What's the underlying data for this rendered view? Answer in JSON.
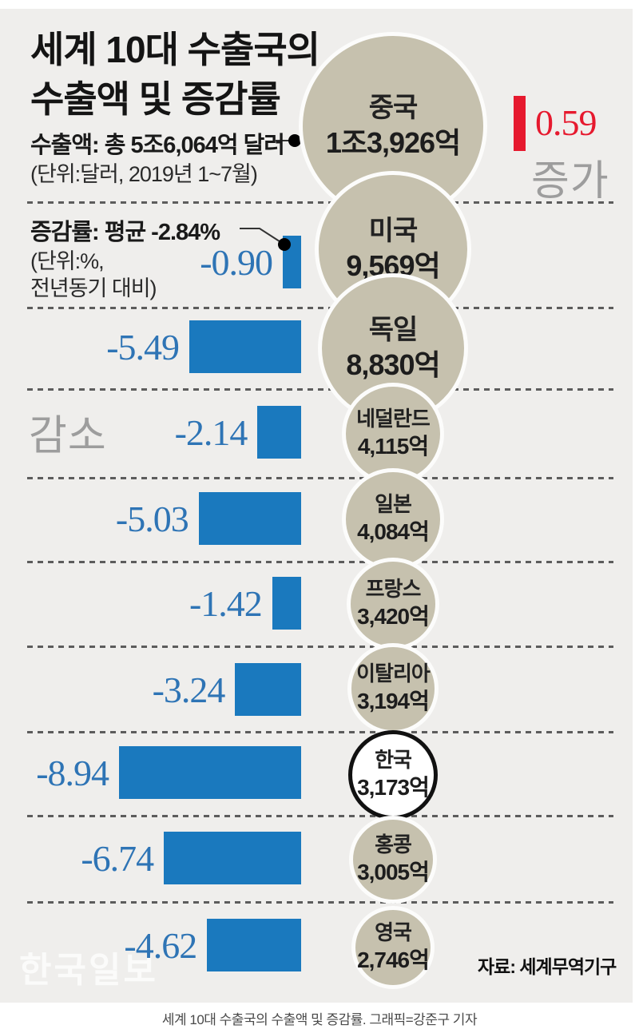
{
  "title": {
    "line1": "세계 10대 수출국의",
    "line2": "수출액 및 증감률"
  },
  "legend_export": {
    "label": "수출액:",
    "value": "총 5조6,064억 달러",
    "unit_note": "(단위:달러, 2019년 1~7월)"
  },
  "legend_change": {
    "label": "증감률:",
    "value": "평균 -2.84%",
    "unit_note_line1": "(단위:%,",
    "unit_note_line2": "전년동기 대비)"
  },
  "annotations": {
    "increase": "증가",
    "decrease": "감소"
  },
  "source": "자료: 세계무역기구",
  "watermark": "한국일보",
  "caption": "세계 10대 수출국의 수출액 및 증감률. 그래픽=강준구 기자",
  "colors": {
    "background": "#efeeec",
    "circle_beige": "#c6c1ae",
    "bar_blue": "#1a79be",
    "value_blue": "#2e74b5",
    "accent_red": "#e6192e",
    "gray_note": "#9d9d9d"
  },
  "chart_data": {
    "type": "bar",
    "title": "세계 10대 수출국의 수출액 및 증감률",
    "subtitle_total_export": "총 5조6,064억 달러",
    "average_change_pct": -2.84,
    "export_unit": "억 달러 (2019년 1~7월)",
    "change_unit": "% (전년동기 대비)",
    "legend_position": "top-left",
    "grid": "dashed-row-separators",
    "countries": [
      {
        "rank": 1,
        "name": "중국",
        "export_label": "1조3,926억",
        "export_100m_usd": 13926,
        "change_pct": 0.59,
        "change_label": "0.59",
        "direction": "increase",
        "highlight": false
      },
      {
        "rank": 2,
        "name": "미국",
        "export_label": "9,569억",
        "export_100m_usd": 9569,
        "change_pct": -0.9,
        "change_label": "-0.90",
        "direction": "decrease",
        "highlight": false
      },
      {
        "rank": 3,
        "name": "독일",
        "export_label": "8,830억",
        "export_100m_usd": 8830,
        "change_pct": -5.49,
        "change_label": "-5.49",
        "direction": "decrease",
        "highlight": false
      },
      {
        "rank": 4,
        "name": "네덜란드",
        "export_label": "4,115억",
        "export_100m_usd": 4115,
        "change_pct": -2.14,
        "change_label": "-2.14",
        "direction": "decrease",
        "highlight": false
      },
      {
        "rank": 5,
        "name": "일본",
        "export_label": "4,084억",
        "export_100m_usd": 4084,
        "change_pct": -5.03,
        "change_label": "-5.03",
        "direction": "decrease",
        "highlight": false
      },
      {
        "rank": 6,
        "name": "프랑스",
        "export_label": "3,420억",
        "export_100m_usd": 3420,
        "change_pct": -1.42,
        "change_label": "-1.42",
        "direction": "decrease",
        "highlight": false
      },
      {
        "rank": 7,
        "name": "이탈리아",
        "export_label": "3,194억",
        "export_100m_usd": 3194,
        "change_pct": -3.24,
        "change_label": "-3.24",
        "direction": "decrease",
        "highlight": false
      },
      {
        "rank": 8,
        "name": "한국",
        "export_label": "3,173억",
        "export_100m_usd": 3173,
        "change_pct": -8.94,
        "change_label": "-8.94",
        "direction": "decrease",
        "highlight": true
      },
      {
        "rank": 9,
        "name": "홍콩",
        "export_label": "3,005억",
        "export_100m_usd": 3005,
        "change_pct": -6.74,
        "change_label": "-6.74",
        "direction": "decrease",
        "highlight": false
      },
      {
        "rank": 10,
        "name": "영국",
        "export_label": "2,746억",
        "export_100m_usd": 2746,
        "change_pct": -4.62,
        "change_label": "-4.62",
        "direction": "decrease",
        "highlight": false
      }
    ]
  }
}
